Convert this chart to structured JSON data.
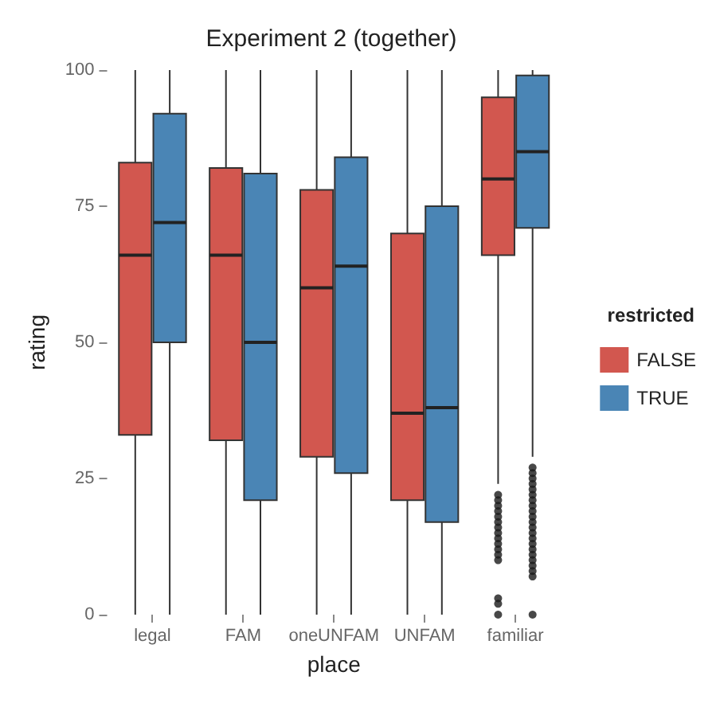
{
  "chart_data": {
    "type": "box",
    "title": "Experiment 2 (together)",
    "xlabel": "place",
    "ylabel": "rating",
    "legend_title": "restricted",
    "legend": "right",
    "categories": [
      "legal",
      "FAM",
      "oneUNFAM",
      "UNFAM",
      "familiar"
    ],
    "ylim": [
      0,
      100
    ],
    "yticks": [
      0,
      25,
      50,
      75,
      100
    ],
    "grid": false,
    "series": [
      {
        "name": "FALSE",
        "color": "#d2574f",
        "boxes": [
          {
            "low": 0,
            "q1": 33,
            "median": 66,
            "q3": 83,
            "high": 100
          },
          {
            "low": 0,
            "q1": 32,
            "median": 66,
            "q3": 82,
            "high": 100
          },
          {
            "low": 0,
            "q1": 29,
            "median": 60,
            "q3": 78,
            "high": 100
          },
          {
            "low": 0,
            "q1": 21,
            "median": 37,
            "q3": 70,
            "high": 100
          },
          {
            "low": 24,
            "q1": 66,
            "median": 80,
            "q3": 95,
            "high": 100,
            "outliers": [
              22,
              21,
              20,
              19,
              18,
              17,
              16,
              15,
              14,
              13,
              12,
              11,
              10,
              3,
              2,
              0
            ]
          }
        ]
      },
      {
        "name": "TRUE",
        "color": "#4a85b5",
        "boxes": [
          {
            "low": 0,
            "q1": 50,
            "median": 72,
            "q3": 92,
            "high": 100
          },
          {
            "low": 0,
            "q1": 21,
            "median": 50,
            "q3": 81,
            "high": 100
          },
          {
            "low": 0,
            "q1": 26,
            "median": 64,
            "q3": 84,
            "high": 100
          },
          {
            "low": 0,
            "q1": 17,
            "median": 38,
            "q3": 75,
            "high": 100
          },
          {
            "low": 29,
            "q1": 71,
            "median": 85,
            "q3": 99,
            "high": 100,
            "outliers": [
              27,
              26,
              25,
              24,
              23,
              22,
              21,
              20,
              19,
              18,
              17,
              16,
              15,
              14,
              13,
              12,
              11,
              10,
              9,
              8,
              7,
              0
            ]
          }
        ]
      }
    ]
  }
}
